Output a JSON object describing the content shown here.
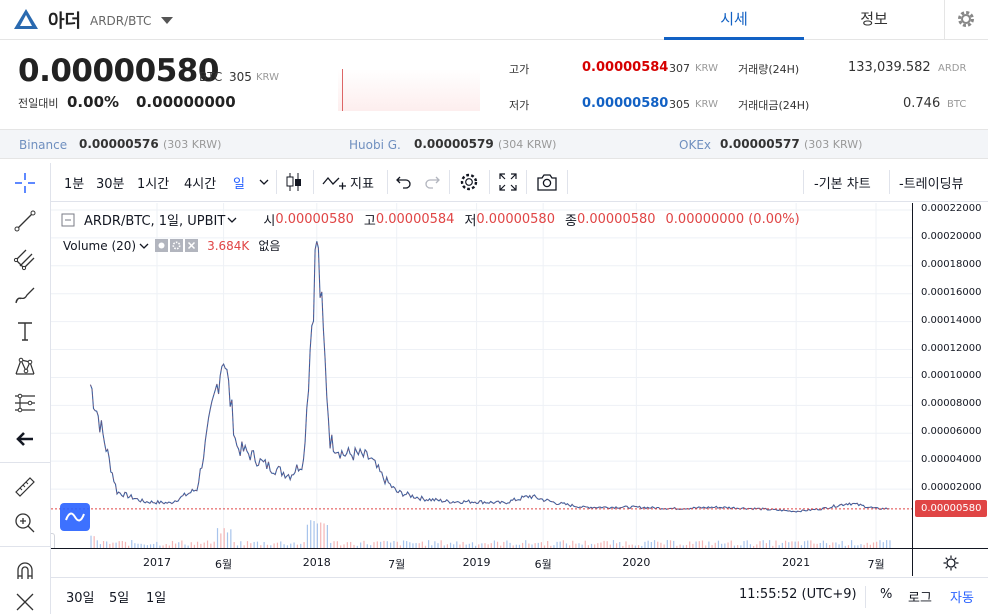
{
  "header": {
    "coin_name": "아더",
    "pair": "ARDR/BTC",
    "tab_market": "시세",
    "tab_info": "정보"
  },
  "price": {
    "current": "0.00000580",
    "unit": "BTC",
    "krw": "305",
    "krw_unit": "KRW",
    "change_label": "전일대비",
    "change_pct": "0.00%",
    "change_val": "0.00000000"
  },
  "stats": {
    "high_label": "고가",
    "high_val": "0.00000584",
    "high_krw": "307",
    "low_label": "저가",
    "low_val": "0.00000580",
    "low_krw": "305",
    "krw_unit": "KRW",
    "vol_label": "거래량(24H)",
    "vol_val": "133,039.582",
    "vol_unit": "ARDR",
    "amt_label": "거래대금(24H)",
    "amt_val": "0.746",
    "amt_unit": "BTC"
  },
  "exchanges": [
    {
      "name": "Binance",
      "price": "0.00000576",
      "krw": "(303 KRW)"
    },
    {
      "name": "Huobi G.",
      "price": "0.00000579",
      "krw": "(304 KRW)"
    },
    {
      "name": "OKEx",
      "price": "0.00000577",
      "krw": "(303 KRW)"
    }
  ],
  "toolbar": {
    "intervals": [
      "1분",
      "30분",
      "1시간",
      "4시간",
      "일"
    ],
    "indicators": "지표",
    "basic_chart": "-기본 차트",
    "tradingview": "-트레이딩뷰"
  },
  "legend": {
    "symbol": "ARDR/BTC, 1일, UPBIT",
    "o_label": "시",
    "o_val": "0.00000580",
    "h_label": "고",
    "h_val": "0.00000584",
    "l_label": "저",
    "l_val": "0.00000580",
    "c_label": "종",
    "c_val": "0.00000580",
    "chg": "0.00000000 (0.00%)",
    "volume_label": "Volume (20)",
    "volume_val": "3.684K",
    "volume_extra": "없음"
  },
  "axis": {
    "y_ticks": [
      "0.00022000",
      "0.00020000",
      "0.00018000",
      "0.00016000",
      "0.00014000",
      "0.00012000",
      "0.00010000",
      "0.00008000",
      "0.00006000",
      "0.00004000",
      "0.00002000"
    ],
    "last_price": "0.00000580",
    "x_ticks": [
      "2017",
      "6월",
      "2018",
      "7월",
      "2019",
      "6월",
      "2020",
      "2021",
      "7월"
    ]
  },
  "bottom": {
    "ranges": [
      "30일",
      "5일",
      "1일"
    ],
    "time": "11:55:52 (UTC+9)",
    "pct": "%",
    "log": "로그",
    "auto": "자동"
  },
  "chart_data": {
    "type": "line",
    "x": [
      "2016-08",
      "2016-10",
      "2016-12",
      "2017-02",
      "2017-04",
      "2017-05",
      "2017-06",
      "2017-07",
      "2017-08",
      "2017-09",
      "2017-10",
      "2017-11",
      "2017-12",
      "2018-01",
      "2018-02",
      "2018-03",
      "2018-04",
      "2018-05",
      "2018-06",
      "2018-07",
      "2018-09",
      "2018-11",
      "2019-01",
      "2019-03",
      "2019-05",
      "2019-07",
      "2019-09",
      "2019-11",
      "2020-01",
      "2020-04",
      "2020-07",
      "2020-10",
      "2021-01",
      "2021-03",
      "2021-05",
      "2021-07",
      "2021-08"
    ],
    "series": [
      {
        "values": [
          9.5e-05,
          1.8e-05,
          1.1e-05,
          1e-05,
          2e-05,
          7e-05,
          0.000118,
          5e-05,
          4.5e-05,
          3.8e-05,
          3.4e-05,
          3e-05,
          4e-05,
          0.0002,
          5.5e-05,
          4.5e-05,
          4.5e-05,
          4.2e-05,
          2.8e-05,
          1.8e-05,
          1.3e-05,
          1.1e-05,
          1.1e-05,
          1e-05,
          1.5e-05,
          1e-05,
          7e-06,
          7e-06,
          7e-06,
          6e-06,
          7e-06,
          6e-06,
          4e-06,
          6e-06,
          1e-05,
          6e-06,
          6e-06
        ]
      }
    ],
    "ylim": [
      0,
      0.000225
    ],
    "xlabel": "",
    "ylabel": "",
    "last_value": 5.8e-06
  }
}
